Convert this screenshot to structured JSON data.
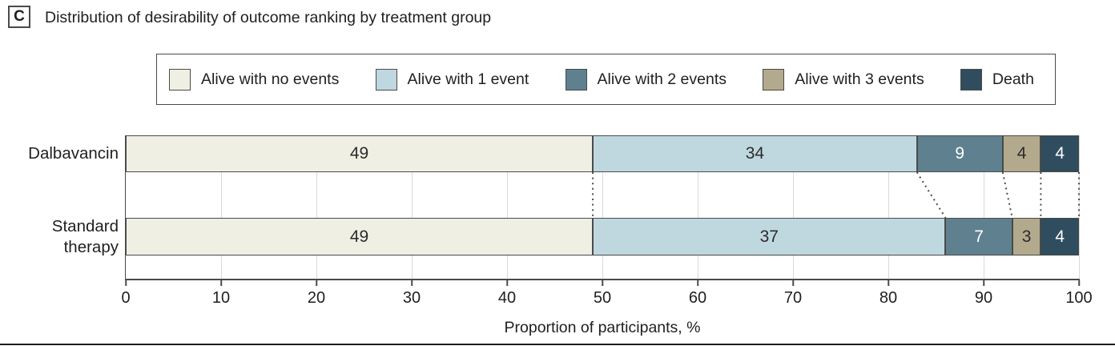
{
  "panel": {
    "label": "C",
    "title": "Distribution of desirability of outcome ranking by treatment group"
  },
  "colors": {
    "alive_no_events": "#F0EFE4",
    "alive_1_event": "#BFD8E0",
    "alive_2_events": "#5F818F",
    "alive_3_events": "#B3A98C",
    "death": "#2F4D5E",
    "axis": "#4A4A4A",
    "gridline": "#D9D9D9"
  },
  "chart_data": {
    "type": "bar",
    "subtype": "horizontal-stacked",
    "categories": [
      "Dalbavancin",
      "Standard therapy"
    ],
    "series": [
      {
        "name": "Alive with no events",
        "color": "#F0EFE4",
        "text_color": "#2B2B2B",
        "values": [
          49,
          49
        ]
      },
      {
        "name": "Alive with 1 event",
        "color": "#BFD8E0",
        "text_color": "#2B2B2B",
        "values": [
          34,
          37
        ]
      },
      {
        "name": "Alive with 2 events",
        "color": "#5F818F",
        "text_color": "#FFFFFF",
        "values": [
          9,
          7
        ]
      },
      {
        "name": "Alive with 3 events",
        "color": "#B3A98C",
        "text_color": "#2B2B2B",
        "values": [
          4,
          3
        ]
      },
      {
        "name": "Death",
        "color": "#2F4D5E",
        "text_color": "#FFFFFF",
        "values": [
          4,
          4
        ]
      }
    ],
    "xlabel": "Proportion of participants, %",
    "x_ticks": [
      0,
      10,
      20,
      30,
      40,
      50,
      60,
      70,
      80,
      90,
      100
    ],
    "xlim": [
      0,
      100
    ],
    "grid": true,
    "legend_position": "top",
    "connector_style": "dotted"
  }
}
